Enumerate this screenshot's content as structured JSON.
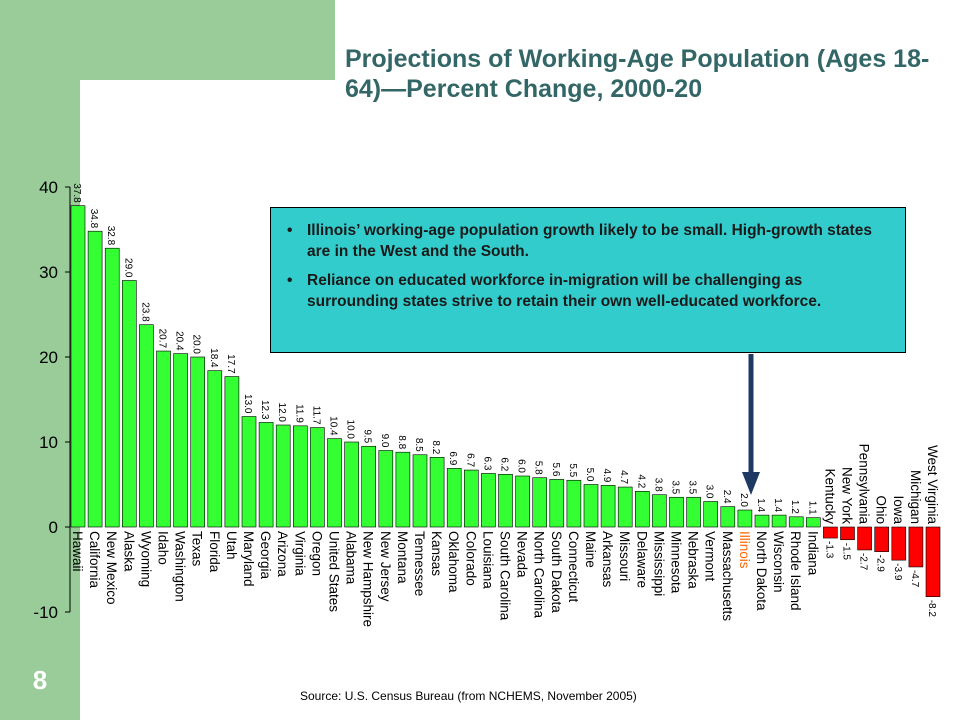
{
  "slide": {
    "number": "8",
    "title": "Projections of Working-Age Population (Ages 18-64)—Percent Change, 2000-20",
    "source": "Source:  U.S. Census Bureau (from NCHEMS, November 2005)",
    "callout": [
      "Illinois’ working-age population growth likely to be small. High-growth states are in the West and the South.",
      "Reliance on educated workforce in-migration will be challenging as surrounding states strive to retain their own well-educated workforce."
    ]
  },
  "colors": {
    "positive": "#33ff33",
    "negative": "#ff0000",
    "highlight_label": "#ff6600",
    "band": "#99cc99",
    "title": "#336666",
    "callout": "#33cccc",
    "arrow": "#1f3864"
  },
  "chart_data": {
    "type": "bar",
    "ylim": [
      -10,
      40
    ],
    "yticks": [
      "40",
      "30",
      "20",
      "10",
      "0",
      "-10"
    ],
    "highlight": "Illinois",
    "categories": [
      "Hawaii",
      "California",
      "New Mexico",
      "Alaska",
      "Wyoming",
      "Idaho",
      "Washington",
      "Texas",
      "Florida",
      "Utah",
      "Maryland",
      "Georgia",
      "Arizona",
      "Virginia",
      "Oregon",
      "United States",
      "Alabama",
      "New Hampshire",
      "New Jersey",
      "Montana",
      "Tennessee",
      "Kansas",
      "Oklahoma",
      "Colorado",
      "Louisiana",
      "South Carolina",
      "Nevada",
      "North Carolina",
      "South Dakota",
      "Connecticut",
      "Maine",
      "Arkansas",
      "Missouri",
      "Delaware",
      "Mississippi",
      "Minnesota",
      "Nebraska",
      "Vermont",
      "Massachusetts",
      "Illinois",
      "North Dakota",
      "Wisconsin",
      "Rhode Island",
      "Indiana",
      "Kentucky",
      "New York",
      "Pennsylvania",
      "Ohio",
      "Iowa",
      "Michigan",
      "West Virginia"
    ],
    "values": [
      37.8,
      34.8,
      32.8,
      29.0,
      23.8,
      20.7,
      20.4,
      20.0,
      18.4,
      17.7,
      13.0,
      12.3,
      12.0,
      11.9,
      11.7,
      10.4,
      10.0,
      9.5,
      9.0,
      8.8,
      8.5,
      8.2,
      6.9,
      6.7,
      6.3,
      6.2,
      6.0,
      5.8,
      5.6,
      5.5,
      5.0,
      4.9,
      4.7,
      4.2,
      3.8,
      3.5,
      3.5,
      3.0,
      2.4,
      2.0,
      1.4,
      1.4,
      1.2,
      1.1,
      -1.3,
      -1.5,
      -2.7,
      -2.9,
      -3.9,
      -4.7,
      -8.2
    ],
    "labels": [
      "37.8",
      "34.8",
      "32.8",
      "29.0",
      "23.8",
      "20.7",
      "20.4",
      "20.0",
      "18.4",
      "17.7",
      "13.0",
      "12.3",
      "12.0",
      "11.9",
      "11.7",
      "10.4",
      "10.0",
      "9.5",
      "9.0",
      "8.8",
      "8.5",
      "8.2",
      "6.9",
      "6.7",
      "6.3",
      "6.2",
      "6.0",
      "5.8",
      "5.6",
      "5.5",
      "5.0",
      "4.9",
      "4.7",
      "4.2",
      "3.8",
      "3.5",
      "3.5",
      "3.0",
      "2.4",
      "2.0",
      "1.4",
      "1.4",
      "1.2",
      "1.1",
      "-1.3",
      "-1.5",
      "-2.7",
      "-2.9",
      "-3.9",
      "-4.7",
      "-8.2"
    ]
  }
}
